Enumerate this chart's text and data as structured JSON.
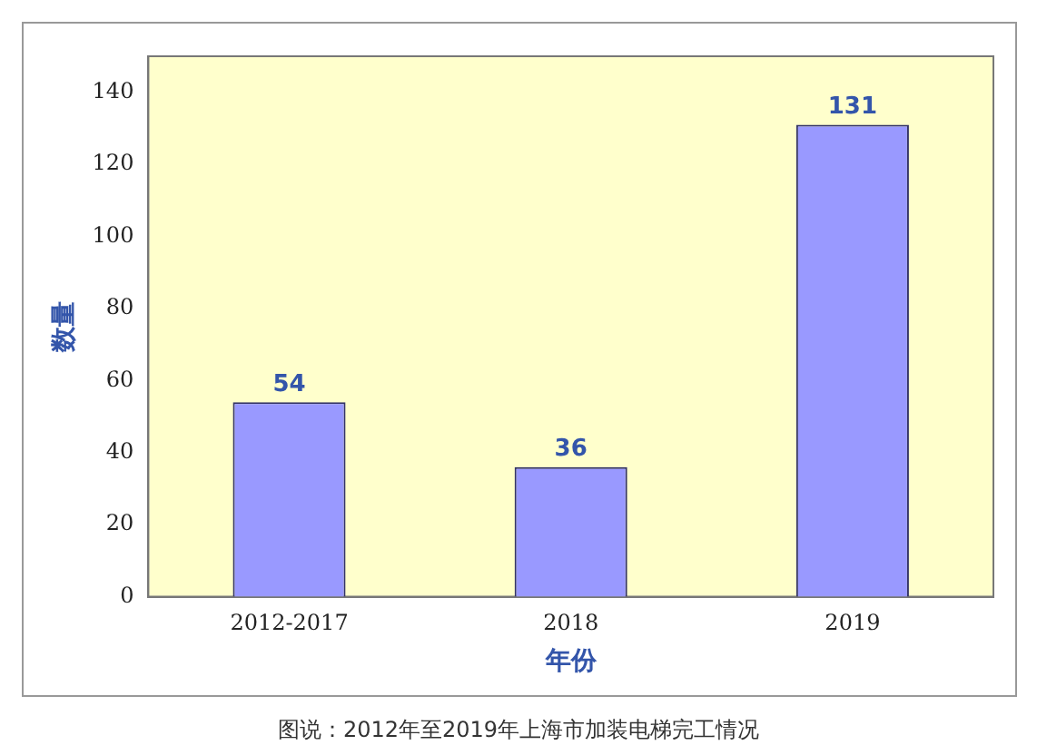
{
  "chart_data": {
    "type": "bar",
    "xlabel": "年份",
    "ylabel": "数量",
    "categories": [
      "2012-2017",
      "2018",
      "2019"
    ],
    "values": [
      54,
      36,
      131
    ],
    "color": "#9999ff",
    "ylim": [
      0,
      150
    ],
    "yticks": [
      0,
      20,
      40,
      60,
      80,
      100,
      120,
      140
    ],
    "grid": false,
    "legend": false,
    "data_labels": true,
    "annotations": [
      "图说：2012年至2019年上海市加装电梯完工情况"
    ]
  }
}
